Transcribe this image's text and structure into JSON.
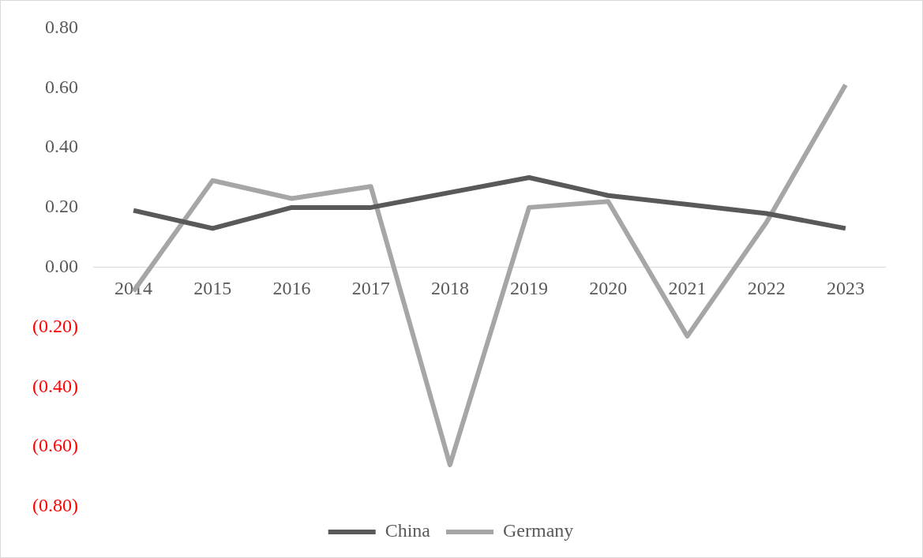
{
  "chart_data": {
    "type": "line",
    "categories": [
      "2014",
      "2015",
      "2016",
      "2017",
      "2018",
      "2019",
      "2020",
      "2021",
      "2022",
      "2023"
    ],
    "series": [
      {
        "name": "China",
        "color": "#595959",
        "values": [
          0.19,
          0.13,
          0.2,
          0.2,
          0.25,
          0.3,
          0.24,
          0.21,
          0.18,
          0.13
        ]
      },
      {
        "name": "Germany",
        "color": "#a6a6a6",
        "values": [
          -0.08,
          0.29,
          0.23,
          0.27,
          -0.66,
          0.2,
          0.22,
          -0.23,
          0.15,
          0.61
        ]
      }
    ],
    "ylim": [
      -0.8,
      0.8
    ],
    "yticks": [
      {
        "value": -0.8,
        "label": "(0.80)"
      },
      {
        "value": -0.6,
        "label": "(0.60)"
      },
      {
        "value": -0.4,
        "label": "(0.40)"
      },
      {
        "value": -0.2,
        "label": "(0.20)"
      },
      {
        "value": 0,
        "label": "0.00"
      },
      {
        "value": 0.2,
        "label": "0.20"
      },
      {
        "value": 0.4,
        "label": "0.40"
      },
      {
        "value": 0.6,
        "label": "0.60"
      },
      {
        "value": 0.8,
        "label": "0.80"
      }
    ],
    "legend": "bottom",
    "marker": "none",
    "line_style": "solid",
    "grid": false
  }
}
